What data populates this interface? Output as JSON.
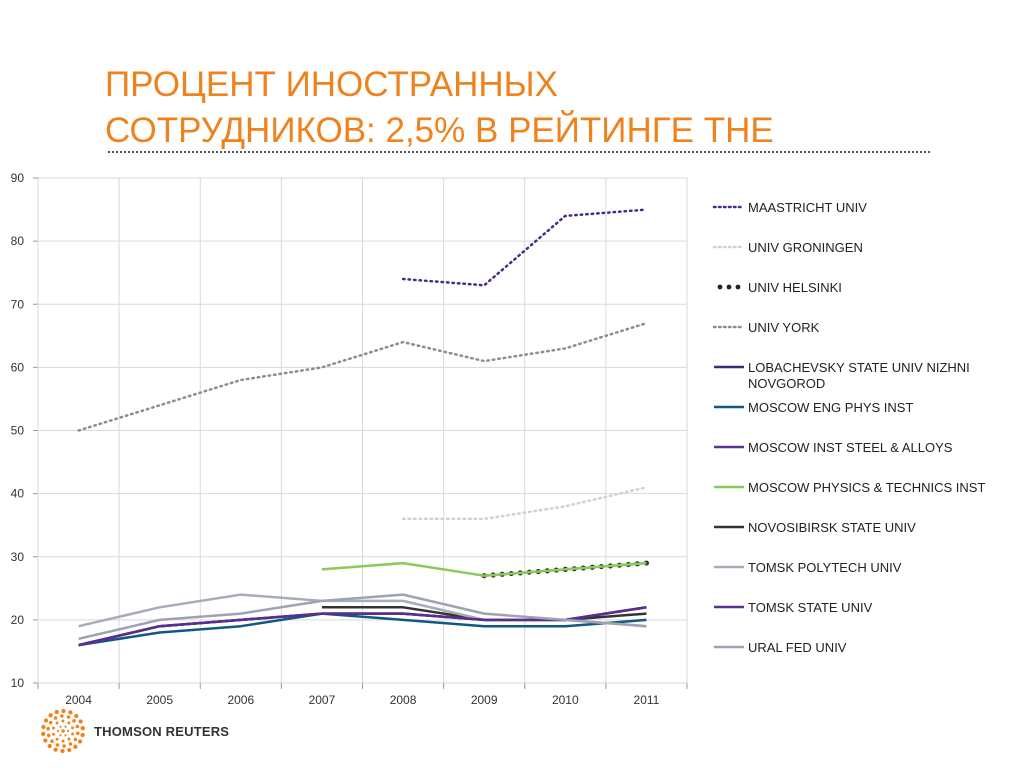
{
  "slide": {
    "title_line1": "ПРОЦЕНТ ИНОСТРАННЫХ",
    "title_line2": "СОТРУДНИКОВ: 2,5% В РЕЙТИНГЕ THE",
    "logo_text": "THOMSON REUTERS"
  },
  "colors": {
    "title": "#f0821e",
    "logo": "#f0821e"
  },
  "chart_data": {
    "type": "line",
    "categories": [
      "2004",
      "2005",
      "2006",
      "2007",
      "2008",
      "2009",
      "2010",
      "2011"
    ],
    "y_ticks": [
      10,
      20,
      30,
      40,
      50,
      60,
      70,
      80,
      90
    ],
    "ylim": [
      10,
      90
    ],
    "grid": true,
    "legend_position": "right",
    "series": [
      {
        "name": "MAASTRICHT UNIV",
        "color": "#4b2a82",
        "style": "dotted",
        "values": [
          null,
          null,
          null,
          null,
          74,
          73,
          84,
          85
        ]
      },
      {
        "name": "UNIV GRONINGEN",
        "color": "#cfcfd4",
        "style": "dotted",
        "values": [
          null,
          null,
          null,
          null,
          36,
          36,
          38,
          41
        ]
      },
      {
        "name": "UNIV HELSINKI",
        "color": "#333333",
        "style": "bigdots",
        "values": [
          null,
          null,
          null,
          null,
          null,
          27,
          28,
          29
        ]
      },
      {
        "name": "UNIV YORK",
        "color": "#8c8c94",
        "style": "dotted",
        "values": [
          50,
          54,
          58,
          60,
          64,
          61,
          63,
          67
        ]
      },
      {
        "name": "LOBACHEVSKY STATE UNIV NIZHNI NOVGOROD",
        "color": "#3b2a7a",
        "style": "solid",
        "values": [
          16,
          19,
          20,
          21,
          21,
          20,
          20,
          22
        ]
      },
      {
        "name": "MOSCOW ENG PHYS INST",
        "color": "#0e5a80",
        "style": "solid",
        "values": [
          16,
          18,
          19,
          21,
          20,
          19,
          19,
          20
        ]
      },
      {
        "name": "MOSCOW INST STEEL & ALLOYS",
        "color": "#5a3495",
        "style": "solid",
        "values": [
          16,
          19,
          20,
          21,
          21,
          20,
          20,
          22
        ]
      },
      {
        "name": "MOSCOW PHYSICS & TECHNICS INST",
        "color": "#8dc85a",
        "style": "solid",
        "values": [
          null,
          null,
          null,
          28,
          29,
          27,
          28,
          29
        ]
      },
      {
        "name": "NOVOSIBIRSK STATE UNIV",
        "color": "#333333",
        "style": "solid",
        "values": [
          null,
          null,
          null,
          22,
          22,
          20,
          20,
          21
        ]
      },
      {
        "name": "TOMSK POLYTECH UNIV",
        "color": "#a6adb8",
        "style": "solid",
        "values": [
          19,
          22,
          24,
          23,
          23,
          20,
          20,
          19
        ]
      },
      {
        "name": "TOMSK STATE UNIV",
        "color": "#5a2d91",
        "style": "solid",
        "values": [
          16,
          19,
          20,
          21,
          21,
          20,
          20,
          22
        ]
      },
      {
        "name": "URAL FED UNIV",
        "color": "#9ca3b3",
        "style": "solid",
        "values": [
          17,
          20,
          21,
          23,
          24,
          21,
          20,
          19
        ]
      }
    ]
  }
}
